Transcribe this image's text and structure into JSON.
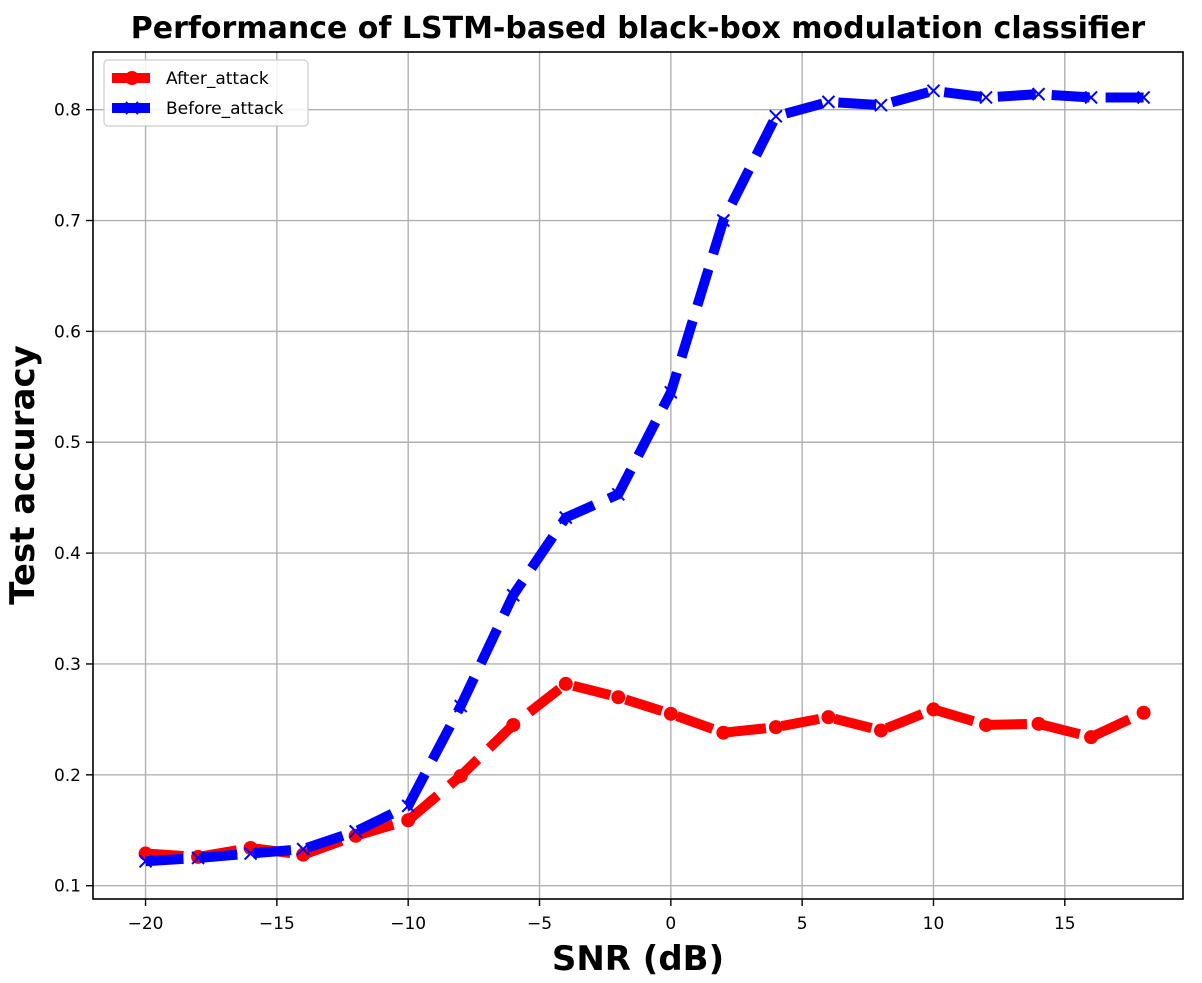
{
  "chart_data": {
    "type": "line",
    "title": "Performance of LSTM-based black-box modulation classifier",
    "xlabel": "SNR (dB)",
    "ylabel": "Test accuracy",
    "xlim": [
      -22,
      19.5
    ],
    "ylim": [
      0.088,
      0.852
    ],
    "xticks": [
      -20,
      -15,
      -10,
      -5,
      0,
      5,
      10,
      15
    ],
    "xtick_labels": [
      "−20",
      "−15",
      "−10",
      "−5",
      "0",
      "5",
      "10",
      "15"
    ],
    "yticks": [
      0.1,
      0.2,
      0.3,
      0.4,
      0.5,
      0.6,
      0.7,
      0.8
    ],
    "ytick_labels": [
      "0.1",
      "0.2",
      "0.3",
      "0.4",
      "0.5",
      "0.6",
      "0.7",
      "0.8"
    ],
    "grid": true,
    "legend_position": "top-left",
    "x": [
      -20,
      -18,
      -16,
      -14,
      -12,
      -10,
      -8,
      -6,
      -4,
      -2,
      0,
      2,
      4,
      6,
      8,
      10,
      12,
      14,
      16,
      18
    ],
    "series": [
      {
        "name": "After_attack",
        "color": "#ff0000",
        "marker": "circle",
        "linestyle": "dashed",
        "values": [
          0.129,
          0.126,
          0.134,
          0.128,
          0.145,
          0.159,
          0.199,
          0.245,
          0.282,
          0.27,
          0.255,
          0.238,
          0.243,
          0.252,
          0.24,
          0.259,
          0.245,
          0.246,
          0.234,
          0.256
        ]
      },
      {
        "name": "Before_attack",
        "color": "#0000ff",
        "marker": "x",
        "linestyle": "dashed",
        "values": [
          0.122,
          0.125,
          0.129,
          0.133,
          0.149,
          0.172,
          0.262,
          0.362,
          0.432,
          0.453,
          0.545,
          0.7,
          0.794,
          0.807,
          0.804,
          0.817,
          0.811,
          0.814,
          0.811,
          0.811
        ]
      }
    ]
  }
}
